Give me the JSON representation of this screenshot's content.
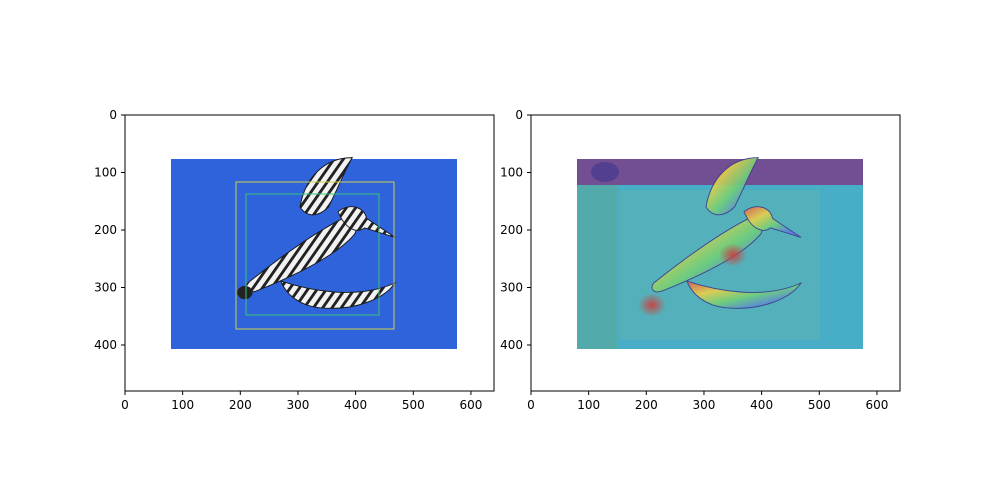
{
  "chart_data": [
    {
      "type": "image",
      "xlim": [
        0,
        640
      ],
      "ylim": [
        480,
        0
      ],
      "x_ticks": [
        0,
        100,
        200,
        300,
        400,
        500,
        600
      ],
      "y_ticks": [
        0,
        100,
        200,
        300,
        400
      ],
      "image_extent": {
        "x": [
          80,
          576
        ],
        "y": [
          77,
          408
        ]
      },
      "background_color": "#2f63dc",
      "boxes": [
        {
          "x0": 192,
          "y0": 116,
          "x1": 467,
          "y1": 372,
          "color": "#c9d14a"
        },
        {
          "x0": 210,
          "y0": 137,
          "x1": 440,
          "y1": 350,
          "color": "#39c27a"
        }
      ]
    },
    {
      "type": "heatmap",
      "xlim": [
        0,
        640
      ],
      "ylim": [
        480,
        0
      ],
      "x_ticks": [
        0,
        100,
        200,
        300,
        400,
        500,
        600
      ],
      "y_ticks": [
        0,
        100,
        200,
        300,
        400
      ],
      "image_extent": {
        "x": [
          80,
          576
        ],
        "y": [
          77,
          408
        ]
      },
      "colormap_colors": [
        "#6b3a8a",
        "#58a7a0",
        "#3fb3cc",
        "#c9423e"
      ]
    }
  ]
}
